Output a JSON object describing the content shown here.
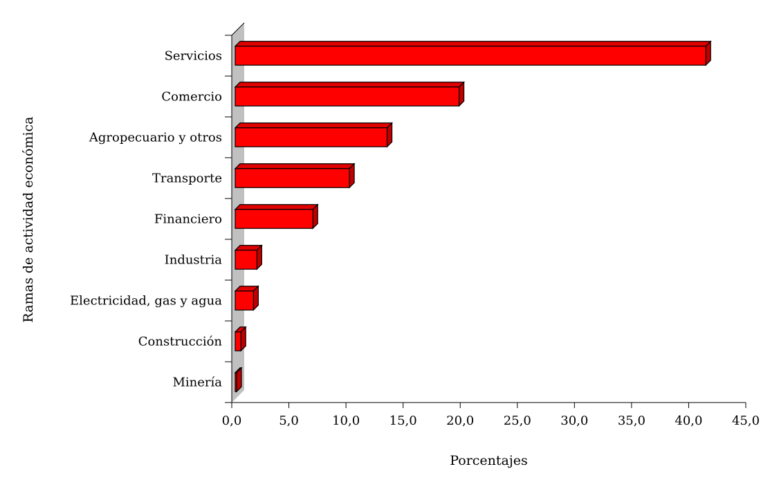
{
  "chart_data": {
    "type": "bar",
    "orientation": "horizontal",
    "title": "",
    "xlabel": "Porcentajes",
    "ylabel": "Ramas de actividad económica",
    "categories": [
      "Servicios",
      "Comercio",
      "Agropecuario y otros",
      "Transporte",
      "Financiero",
      "Industria",
      "Electricidad, gas y agua",
      "Construcción",
      "Minería"
    ],
    "values": [
      41.5,
      19.9,
      13.6,
      10.3,
      7.1,
      2.2,
      1.9,
      0.8,
      0.1
    ],
    "xlim": [
      0,
      45
    ],
    "xticks": [
      "0,0",
      "5,0",
      "10,0",
      "15,0",
      "20,0",
      "25,0",
      "30,0",
      "35,0",
      "40,0",
      "45,0"
    ],
    "grid": false,
    "three_d": true,
    "bar_color": "#ff0000",
    "bar_side_color": "#c00000",
    "bar_top_color": "#e00000",
    "wall_color": "#c0c0c0"
  }
}
